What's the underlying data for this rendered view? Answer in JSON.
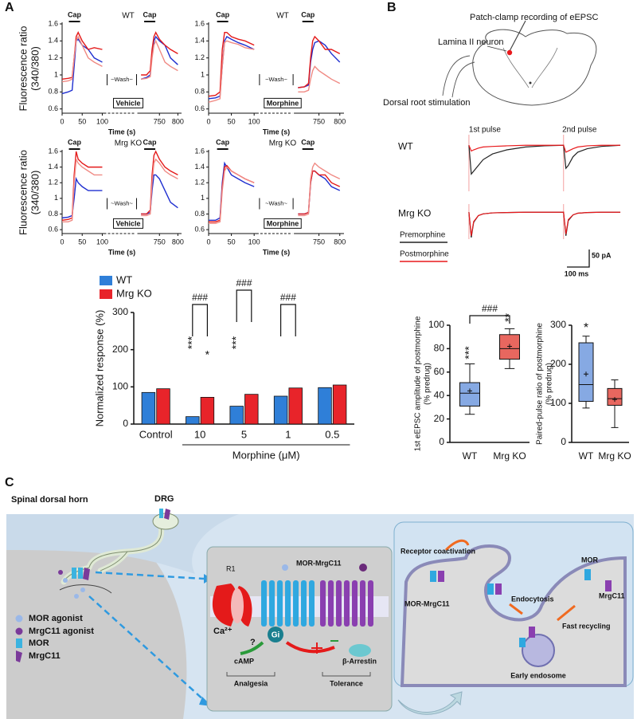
{
  "panel_labels": [
    "A",
    "B",
    "C"
  ],
  "chart_data": [
    {
      "type": "trace",
      "title": "WT",
      "stim_labels": [
        "Cap",
        "Cap"
      ],
      "wash": "~Wash~",
      "drug": "Vehicle",
      "xlabel": "Time (s)",
      "ylabel": [
        "Fluorescence ratio",
        "(340/380)"
      ],
      "xlim": [
        [
          0,
          110
        ],
        [
          690,
          810
        ]
      ],
      "xticks": [
        0,
        50,
        100,
        750,
        800
      ],
      "ylim": [
        0.55,
        1.6
      ],
      "yticks": [
        0.6,
        0.8,
        1.0,
        1.2,
        1.4,
        1.6
      ],
      "x": [
        0,
        15,
        25,
        30,
        35,
        40,
        50,
        65,
        80,
        100,
        700,
        715,
        725,
        730,
        735,
        740,
        750,
        765,
        780,
        800
      ],
      "series": [
        {
          "color": "#1f2fd0",
          "values": [
            0.78,
            0.8,
            0.82,
            1.1,
            1.4,
            1.42,
            1.35,
            1.3,
            1.2,
            1.15,
            0.95,
            0.97,
            1.0,
            1.25,
            1.4,
            1.45,
            1.4,
            1.35,
            1.2,
            1.12
          ]
        },
        {
          "color": "#e41a1a",
          "values": [
            0.95,
            0.96,
            0.97,
            1.2,
            1.45,
            1.5,
            1.4,
            1.3,
            1.32,
            1.3,
            1.0,
            1.0,
            1.05,
            1.3,
            1.45,
            1.5,
            1.42,
            1.35,
            1.3,
            1.25
          ]
        },
        {
          "color": "#f08a84",
          "values": [
            0.92,
            0.93,
            0.95,
            1.2,
            1.4,
            1.45,
            1.35,
            1.2,
            1.15,
            1.1,
            0.95,
            0.96,
            0.98,
            1.2,
            1.35,
            1.4,
            1.3,
            1.15,
            1.1,
            1.05
          ]
        }
      ]
    },
    {
      "type": "trace",
      "title": "WT",
      "stim_labels": [
        "Cap",
        "Cap"
      ],
      "wash": "~Wash~",
      "drug": "Morphine",
      "xlabel": "Time (s)",
      "xlim": [
        [
          0,
          110
        ],
        [
          690,
          810
        ]
      ],
      "xticks": [
        0,
        50,
        100,
        750,
        800
      ],
      "ylim": [
        0.55,
        1.6
      ],
      "yticks": [
        0.6,
        0.8,
        1.0,
        1.2,
        1.4,
        1.6
      ],
      "x": [
        0,
        15,
        25,
        30,
        35,
        40,
        50,
        65,
        80,
        100,
        700,
        715,
        725,
        730,
        735,
        740,
        750,
        765,
        780,
        800
      ],
      "series": [
        {
          "color": "#1f2fd0",
          "values": [
            0.72,
            0.73,
            0.75,
            1.1,
            1.4,
            1.45,
            1.42,
            1.38,
            1.35,
            1.3,
            0.85,
            0.86,
            0.88,
            1.15,
            1.3,
            1.38,
            1.4,
            1.35,
            1.25,
            1.15
          ]
        },
        {
          "color": "#e41a1a",
          "values": [
            0.75,
            0.76,
            0.8,
            1.3,
            1.5,
            1.5,
            1.45,
            1.42,
            1.4,
            1.35,
            0.85,
            0.86,
            0.9,
            1.2,
            1.4,
            1.45,
            1.4,
            1.3,
            1.3,
            1.25
          ]
        },
        {
          "color": "#f08a84",
          "values": [
            0.68,
            0.7,
            0.72,
            1.1,
            1.38,
            1.4,
            1.38,
            1.36,
            1.32,
            1.3,
            0.8,
            0.8,
            0.82,
            0.95,
            1.05,
            1.1,
            1.05,
            1.0,
            0.95,
            0.9
          ]
        }
      ]
    },
    {
      "type": "trace",
      "title": "Mrg KO",
      "stim_labels": [
        "Cap",
        "Cap"
      ],
      "wash": "~Wash~",
      "drug": "Vehicle",
      "xlabel": "Time (s)",
      "ylabel": [
        "Fluorescence ratio",
        "(340/380)"
      ],
      "xlim": [
        [
          0,
          110
        ],
        [
          690,
          810
        ]
      ],
      "xticks": [
        0,
        50,
        100,
        750,
        800
      ],
      "ylim": [
        0.55,
        1.6
      ],
      "yticks": [
        0.6,
        0.8,
        1.0,
        1.2,
        1.4,
        1.6
      ],
      "x": [
        0,
        15,
        25,
        30,
        35,
        40,
        50,
        65,
        80,
        100,
        700,
        715,
        725,
        730,
        735,
        740,
        750,
        765,
        780,
        800
      ],
      "series": [
        {
          "color": "#1f2fd0",
          "values": [
            0.75,
            0.76,
            0.78,
            1.0,
            1.25,
            1.2,
            1.15,
            1.1,
            1.1,
            1.1,
            0.8,
            0.8,
            0.82,
            1.1,
            1.3,
            1.3,
            1.25,
            1.1,
            0.95,
            0.88
          ]
        },
        {
          "color": "#e41a1a",
          "values": [
            0.72,
            0.73,
            0.75,
            1.3,
            1.6,
            1.5,
            1.45,
            1.4,
            1.4,
            1.4,
            0.8,
            0.8,
            0.85,
            1.3,
            1.55,
            1.6,
            1.5,
            1.4,
            1.35,
            1.3
          ]
        },
        {
          "color": "#f08a84",
          "values": [
            0.7,
            0.7,
            0.72,
            1.2,
            1.5,
            1.45,
            1.4,
            1.35,
            1.3,
            1.3,
            0.78,
            0.78,
            0.8,
            1.2,
            1.45,
            1.5,
            1.45,
            1.35,
            1.3,
            1.25
          ]
        }
      ]
    },
    {
      "type": "trace",
      "title": "Mrg KO",
      "stim_labels": [
        "Cap",
        "Cap"
      ],
      "wash": "~Wash~",
      "drug": "Morphine",
      "xlabel": "Time (s)",
      "xlim": [
        [
          0,
          110
        ],
        [
          690,
          810
        ]
      ],
      "xticks": [
        0,
        50,
        100,
        750,
        800
      ],
      "ylim": [
        0.55,
        1.6
      ],
      "yticks": [
        0.6,
        0.8,
        1.0,
        1.2,
        1.4,
        1.6
      ],
      "x": [
        0,
        15,
        25,
        30,
        35,
        40,
        50,
        65,
        80,
        100,
        700,
        715,
        725,
        730,
        735,
        740,
        750,
        765,
        780,
        800
      ],
      "series": [
        {
          "color": "#1f2fd0",
          "values": [
            0.72,
            0.72,
            0.75,
            1.2,
            1.45,
            1.4,
            1.3,
            1.25,
            1.2,
            1.15,
            0.8,
            0.8,
            0.82,
            1.2,
            1.35,
            1.35,
            1.3,
            1.25,
            1.15,
            1.1
          ]
        },
        {
          "color": "#e41a1a",
          "values": [
            0.7,
            0.7,
            0.72,
            1.15,
            1.4,
            1.42,
            1.35,
            1.3,
            1.25,
            1.2,
            0.8,
            0.8,
            0.82,
            1.2,
            1.35,
            1.35,
            1.3,
            1.3,
            1.2,
            1.15
          ]
        },
        {
          "color": "#f08a84",
          "values": [
            0.68,
            0.68,
            0.7,
            1.1,
            1.35,
            1.4,
            1.35,
            1.3,
            1.25,
            1.2,
            0.78,
            0.78,
            0.8,
            1.25,
            1.4,
            1.45,
            1.4,
            1.35,
            1.3,
            1.25
          ]
        }
      ]
    },
    {
      "type": "bar",
      "ylabel": "Normalized response (%)",
      "categories": [
        "Control",
        "10",
        "5",
        "1",
        "0.5"
      ],
      "xlabel": "Morphine (μM)",
      "series": [
        {
          "name": "WT",
          "color": "#2f7fd8",
          "values": [
            85,
            20,
            48,
            75,
            98
          ]
        },
        {
          "name": "Mrg KO",
          "color": "#e8242a",
          "values": [
            95,
            72,
            80,
            97,
            105
          ]
        }
      ],
      "ylim": [
        0,
        300
      ],
      "yticks": [
        0,
        100,
        200,
        300
      ],
      "sig_wt": [
        null,
        "***",
        "***",
        null,
        null
      ],
      "sig_ko": [
        null,
        "*",
        null,
        null,
        null
      ],
      "sig_pair": [
        null,
        "###",
        "###",
        "###",
        null
      ]
    },
    {
      "type": "epsc",
      "title": "WT",
      "annotations": [
        "1st pulse",
        "2nd pulse"
      ],
      "x": [
        0,
        5,
        10,
        20,
        30,
        50,
        80,
        120,
        160,
        200,
        205,
        210,
        220,
        230,
        250,
        280,
        320
      ],
      "xlim": [
        -15,
        330
      ],
      "ylim": [
        -80,
        10
      ],
      "series": [
        {
          "name": "Premorphine",
          "color": "#222222",
          "values": [
            0,
            -50,
            -45,
            -35,
            -25,
            -15,
            -8,
            -3,
            -1,
            0,
            -40,
            -35,
            -20,
            -12,
            -6,
            -2,
            0
          ]
        },
        {
          "name": "Postmorphine",
          "color": "#e8191c",
          "values": [
            0,
            -10,
            -8,
            -5,
            -3,
            -2,
            -1,
            0,
            0,
            0,
            -12,
            -10,
            -6,
            -3,
            -1,
            0,
            0
          ]
        }
      ]
    },
    {
      "type": "epsc",
      "title": "Mrg KO",
      "legend": true,
      "scalebar": [
        "50 pA",
        "100 ms"
      ],
      "x": [
        0,
        5,
        10,
        20,
        30,
        50,
        80,
        120,
        160,
        200,
        205,
        210,
        220,
        230,
        250,
        280,
        320
      ],
      "xlim": [
        -15,
        330
      ],
      "ylim": [
        -80,
        10
      ],
      "series": [
        {
          "name": "Premorphine",
          "color": "#222222",
          "values": [
            0,
            -75,
            -30,
            -10,
            -5,
            -2,
            -1,
            0,
            0,
            0,
            -70,
            -25,
            -8,
            -3,
            -1,
            0,
            0
          ]
        },
        {
          "name": "Postmorphine",
          "color": "#e8191c",
          "values": [
            0,
            -70,
            -28,
            -10,
            -5,
            -2,
            -1,
            0,
            0,
            0,
            -65,
            -22,
            -8,
            -3,
            -1,
            0,
            0
          ]
        }
      ]
    },
    {
      "type": "box",
      "ylabel": [
        "1st eEPSC amplitude of postmorphine",
        "(% predrug)"
      ],
      "categories": [
        "WT",
        "Mrg KO"
      ],
      "colors": [
        "#86a9e3",
        "#e8675f"
      ],
      "boxes": [
        {
          "min": 24,
          "q1": 31,
          "median": 42,
          "q3": 51,
          "max": 67,
          "mean": 44
        },
        {
          "min": 63,
          "q1": 71,
          "median": 80,
          "q3": 92,
          "max": 97,
          "mean": 82
        }
      ],
      "ylim": [
        0,
        100
      ],
      "yticks": [
        0,
        20,
        40,
        60,
        80,
        100
      ],
      "sig": [
        "***",
        "**"
      ],
      "sig_pair": "###"
    },
    {
      "type": "box",
      "ylabel": [
        "Paired-pulse ratio of postmorphine",
        "(% predrug)"
      ],
      "categories": [
        "WT",
        "Mrg KO"
      ],
      "colors": [
        "#86a9e3",
        "#e8675f"
      ],
      "boxes": [
        {
          "min": 88,
          "q1": 105,
          "median": 148,
          "q3": 255,
          "max": 272,
          "mean": 175
        },
        {
          "min": 38,
          "q1": 95,
          "median": 112,
          "q3": 138,
          "max": 160,
          "mean": 110
        }
      ],
      "ylim": [
        0,
        300
      ],
      "yticks": [
        0,
        100,
        200,
        300
      ],
      "sig": [
        "*",
        null
      ]
    }
  ],
  "diagram_b": {
    "title": "Patch-clamp recording of eEPSC",
    "neuron": "Lamina II neuron",
    "stimulation": "Dorsal root stimulation"
  },
  "diagram_c": {
    "region": "Spinal dorsal horn",
    "drg": "DRG",
    "legend": [
      "MOR agonist",
      "MrgC11 agonist",
      "MOR",
      "MrgC11"
    ],
    "middle": {
      "channel": "R1",
      "complex": "MOR-MrgC11",
      "calcium": "Ca²⁺",
      "unknown": "?",
      "gi": "Gi",
      "camp": "cAMP",
      "arrestin": "β-Arrestin",
      "analgesia": "Analgesia",
      "tolerance": "Tolerance"
    },
    "right": {
      "coactivation": "Receptor coactivation",
      "complex": "MOR-MrgC11",
      "endocytosis": "Endocytosis",
      "mor": "MOR",
      "mrgc11": "MrgC11",
      "recycling": "Fast recycling",
      "endosome": "Early endosome"
    }
  }
}
